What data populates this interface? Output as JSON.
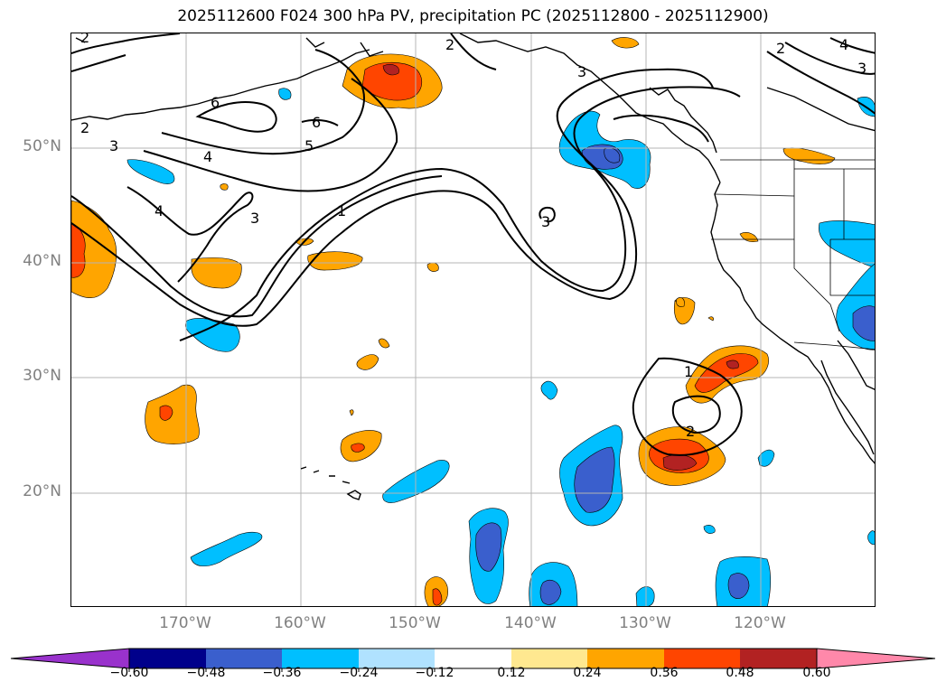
{
  "title": "2025112600 F024 300 hPa PV, precipitation PC (2025112800 - 2025112900)",
  "lat_labels": [
    "50°N",
    "40°N",
    "30°N",
    "20°N"
  ],
  "lon_labels": [
    "170°W",
    "160°W",
    "150°W",
    "140°W",
    "130°W",
    "120°W"
  ],
  "colorbar": {
    "ticks": [
      "−0.60",
      "−0.48",
      "−0.36",
      "−0.24",
      "−0.12",
      "0.12",
      "0.24",
      "0.36",
      "0.48",
      "0.60"
    ],
    "colors": [
      "#9932cc",
      "#00008b",
      "#3a5fcd",
      "#00bfff",
      "#b0e2ff",
      "#ffffff",
      "#ffe890",
      "#ffa500",
      "#ff4500",
      "#b22222",
      "#ff88aa"
    ]
  },
  "contour_labels": [
    "2",
    "2",
    "3",
    "4",
    "6",
    "6",
    "5",
    "4",
    "3",
    "1",
    "3",
    "2",
    "3",
    "4",
    "2",
    "3",
    "1",
    "2"
  ],
  "map": {
    "extent_lon": [
      -180,
      -110
    ],
    "extent_lat": [
      10,
      60
    ],
    "grid": true,
    "field": "300 hPa PV",
    "shading": "precipitation PC",
    "colors": {
      "contour": "#000000",
      "coast": "#000000",
      "grid": "#b4b4b4"
    }
  }
}
